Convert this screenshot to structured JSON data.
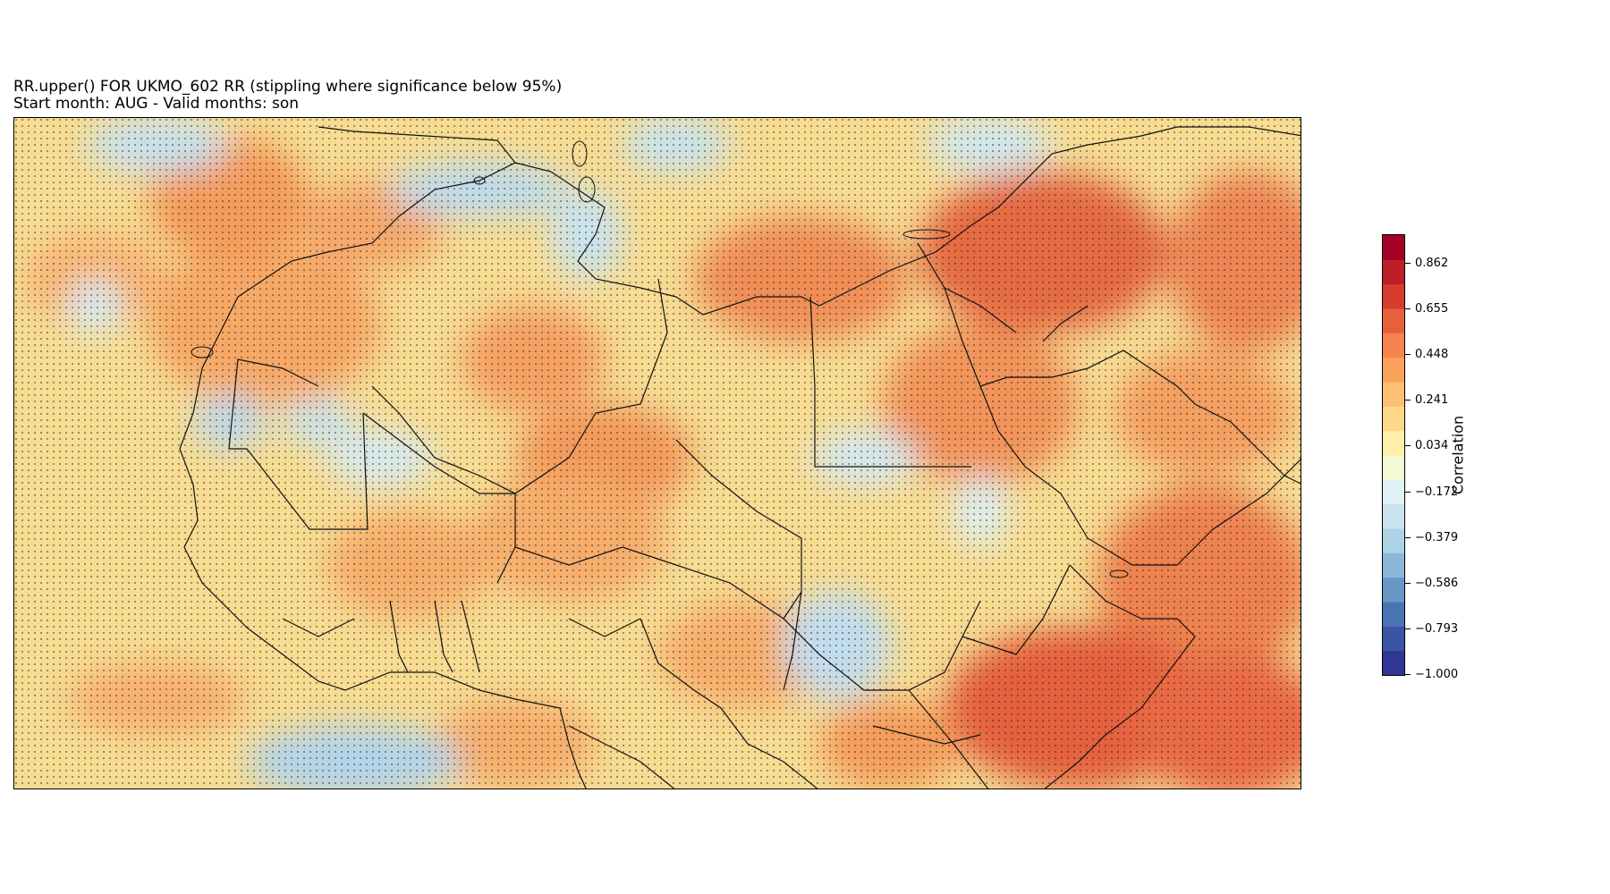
{
  "title": {
    "line1": "RR.upper() FOR UKMO_602 RR (stippling where significance below 95%)",
    "line2": "Start month: AUG - Valid months: son"
  },
  "colorbar": {
    "label": "Correlation",
    "ticks": [
      "0.862",
      "0.655",
      "0.448",
      "0.241",
      "0.034",
      "−0.172",
      "−0.379",
      "−0.586",
      "−0.793",
      "−1.000"
    ],
    "colors": [
      "#313695",
      "#3b54a4",
      "#4a74b4",
      "#6a96c6",
      "#8bb8d9",
      "#abd2e5",
      "#c9e4ef",
      "#e2f3f7",
      "#f3fad4",
      "#fef0a8",
      "#fed98c",
      "#fdbf71",
      "#fba35d",
      "#f4834d",
      "#e5603b",
      "#d73c2c",
      "#bd1f28",
      "#a50026"
    ]
  },
  "map": {
    "stippling": true,
    "base_color": "#f6d98c"
  }
}
